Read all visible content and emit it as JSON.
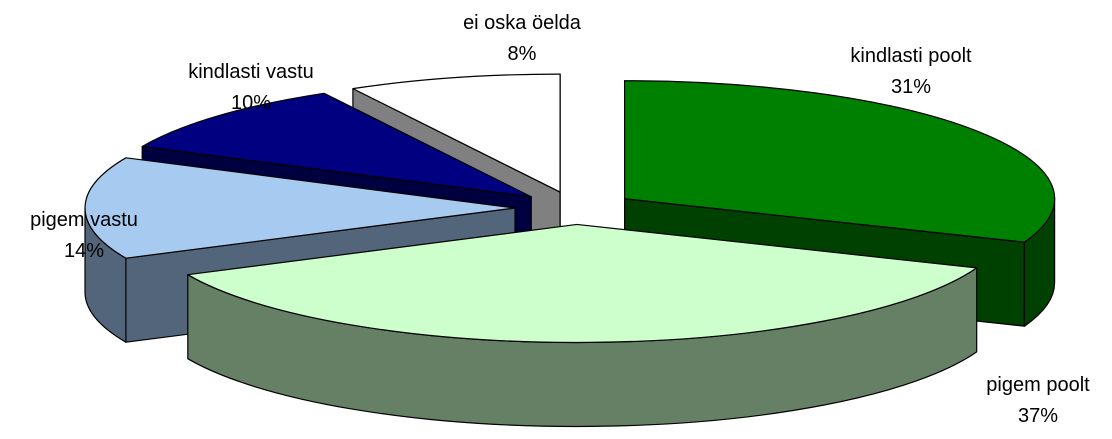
{
  "chart_data": {
    "type": "pie",
    "style": "3d-exploded",
    "slices": [
      {
        "label": "kindlasti poolt",
        "value": 31,
        "value_label": "31%",
        "top_color": "#008000",
        "side_color": "#004000"
      },
      {
        "label": "pigem poolt",
        "value": 37,
        "value_label": "37%",
        "top_color": "#ccffcc",
        "side_color": "#668066"
      },
      {
        "label": "pigem vastu",
        "value": 14,
        "value_label": "14%",
        "top_color": "#a6caf0",
        "side_color": "#53657a"
      },
      {
        "label": "kindlasti vastu",
        "value": 10,
        "value_label": "10%",
        "top_color": "#000080",
        "side_color": "#000040"
      },
      {
        "label": "ei oska öelda",
        "value": 8,
        "value_label": "8%",
        "top_color": "#ffffff",
        "side_color": "#808080"
      }
    ]
  }
}
